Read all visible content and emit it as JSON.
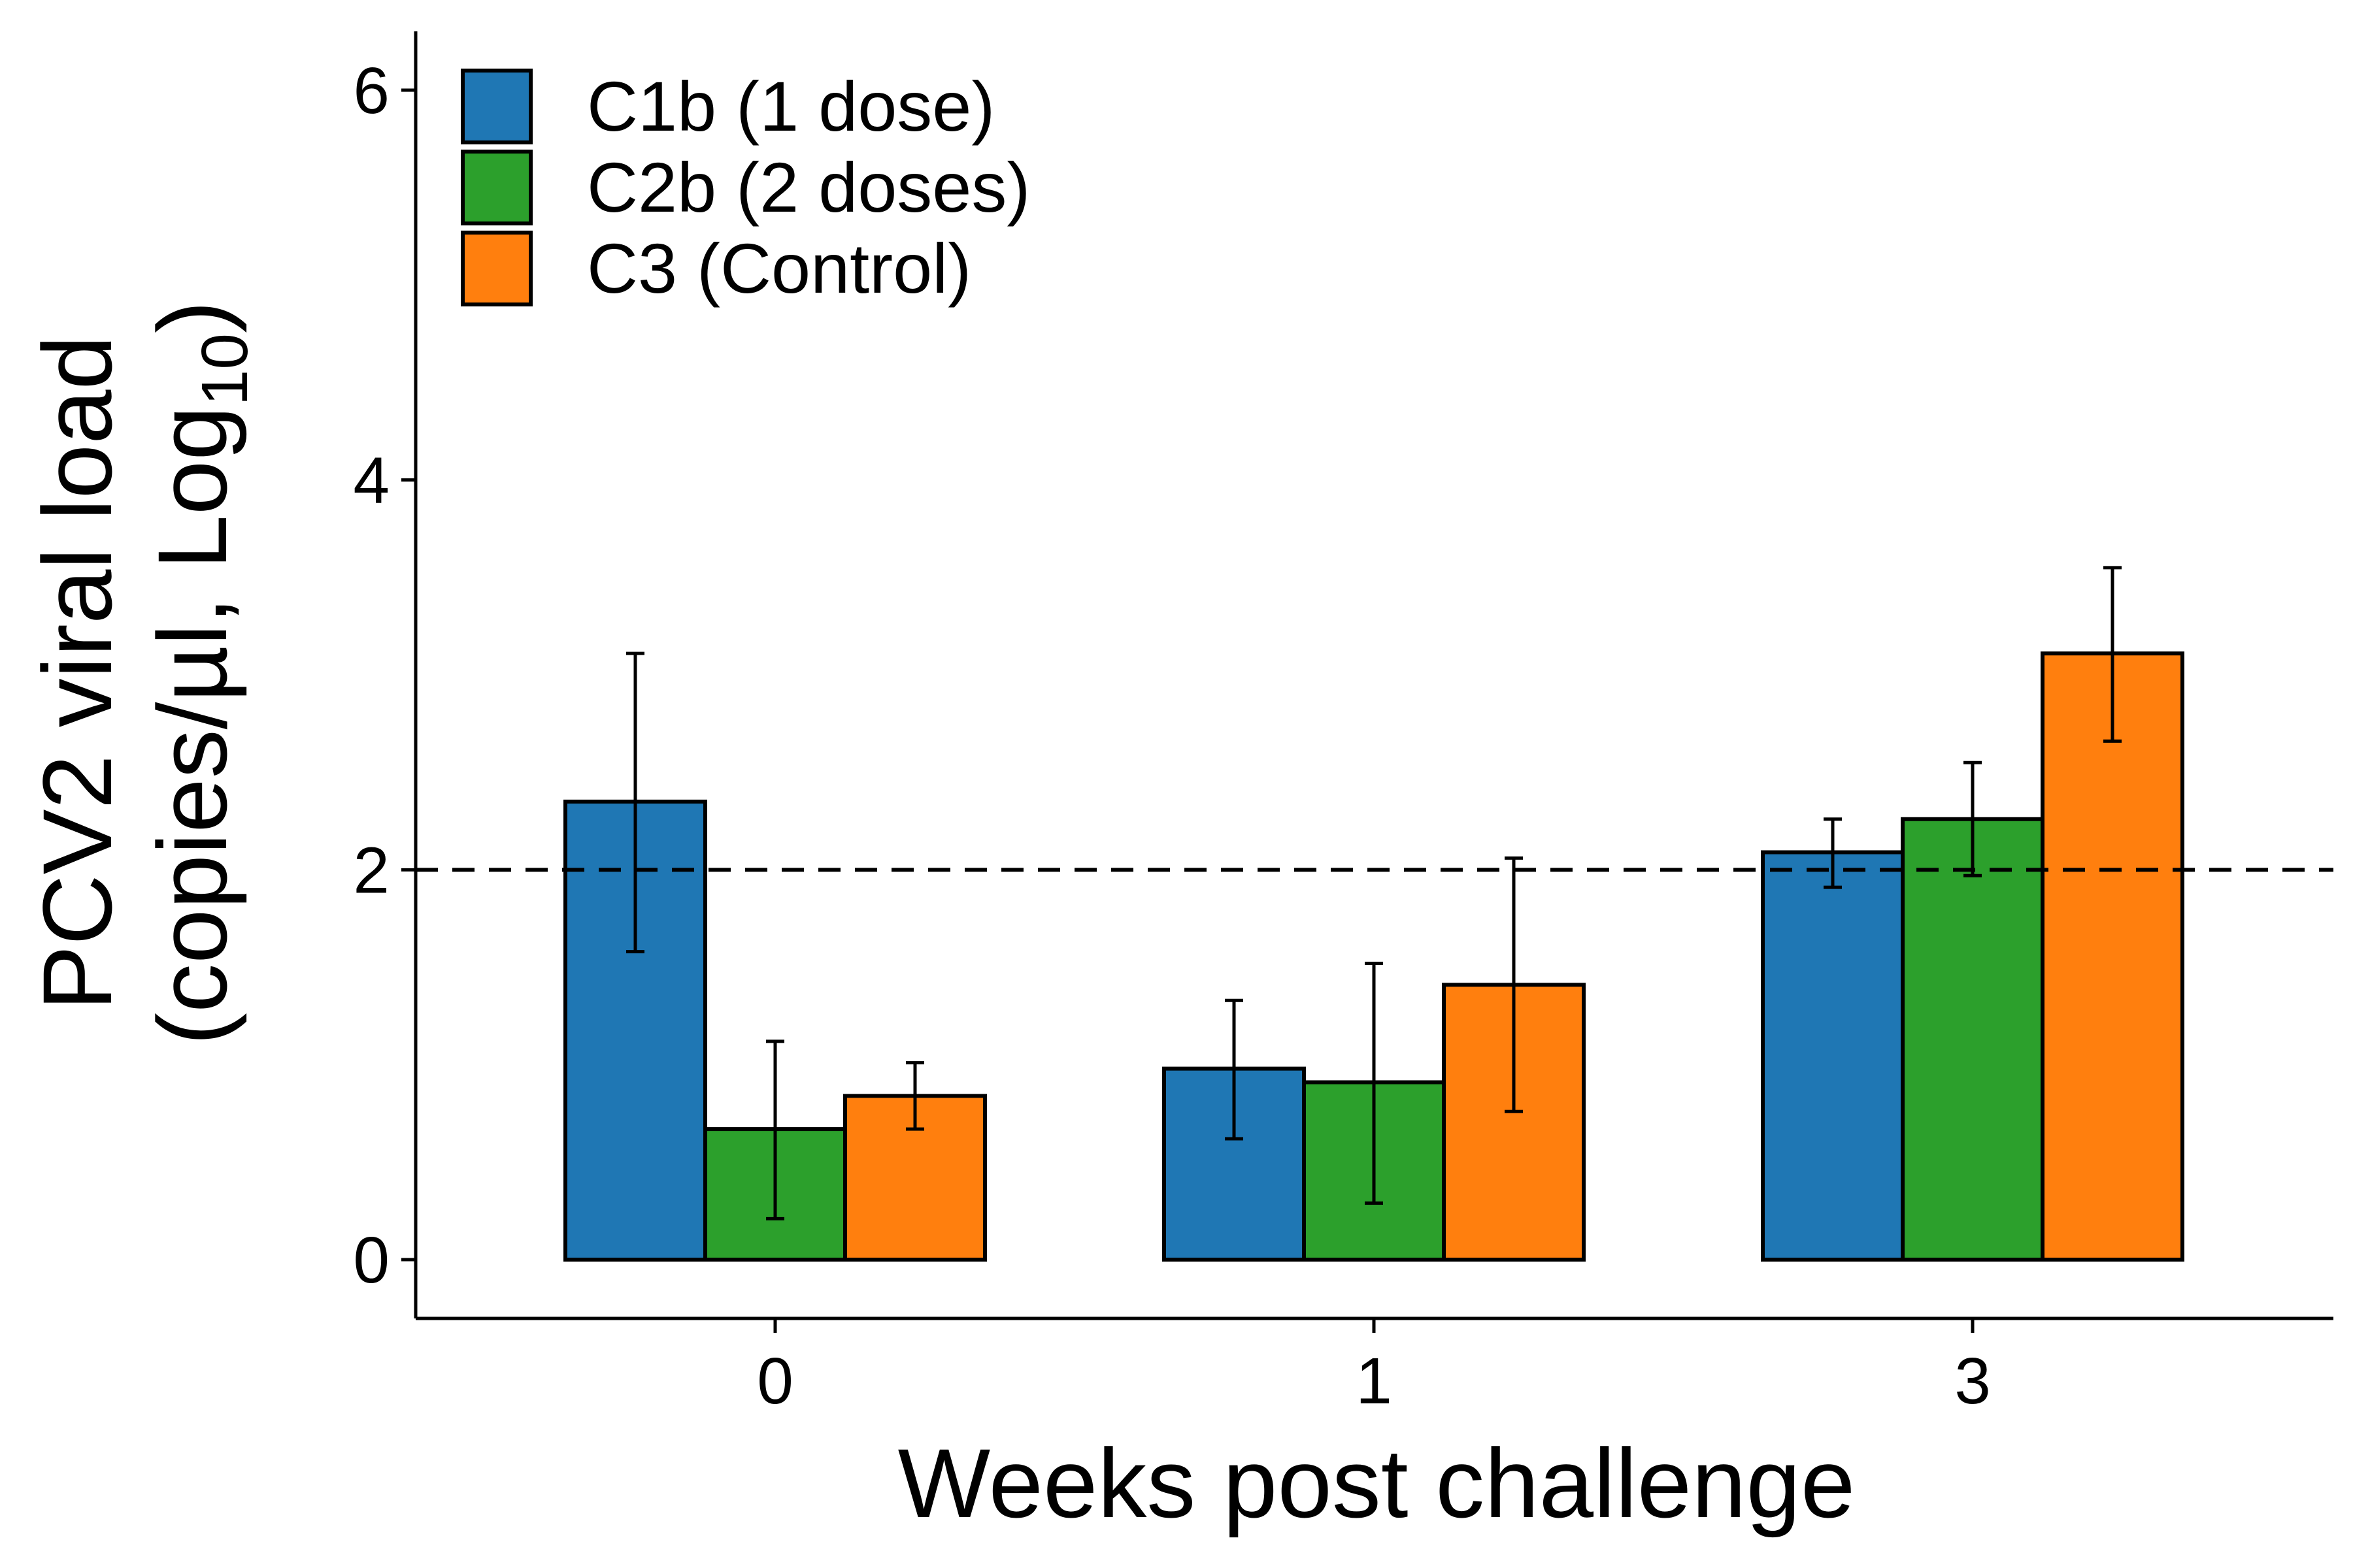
{
  "chart_data": {
    "type": "bar",
    "xlabel": "Weeks post challenge",
    "ylabel_line1": "PCV2 viral load",
    "ylabel_line2_prefix": "(copies/µl, Log",
    "ylabel_line2_subscript": "10",
    "ylabel_line2_suffix": ")",
    "categories": [
      "0",
      "1",
      "3"
    ],
    "ylim": [
      -0.3,
      6.3
    ],
    "yticks": [
      "0",
      "2",
      "4",
      "6"
    ],
    "ytick_values": [
      0,
      2,
      4,
      6
    ],
    "reference_line": 2,
    "legend_position": "top-left",
    "grid": false,
    "series": [
      {
        "name": "C1b (1 dose)",
        "color": "#1f77b4",
        "values": [
          2.35,
          0.98,
          2.09
        ],
        "err_low": [
          1.58,
          0.62,
          1.91
        ],
        "err_high": [
          3.11,
          1.33,
          2.26
        ]
      },
      {
        "name": "C2b (2 doses)",
        "color": "#2ca02c",
        "values": [
          0.67,
          0.91,
          2.26
        ],
        "err_low": [
          0.21,
          0.29,
          1.97
        ],
        "err_high": [
          1.12,
          1.52,
          2.55
        ]
      },
      {
        "name": "C3 (Control)",
        "color": "#ff7f0e",
        "values": [
          0.84,
          1.41,
          3.11
        ],
        "err_low": [
          0.67,
          0.76,
          2.66
        ],
        "err_high": [
          1.01,
          2.06,
          3.55
        ]
      }
    ]
  }
}
